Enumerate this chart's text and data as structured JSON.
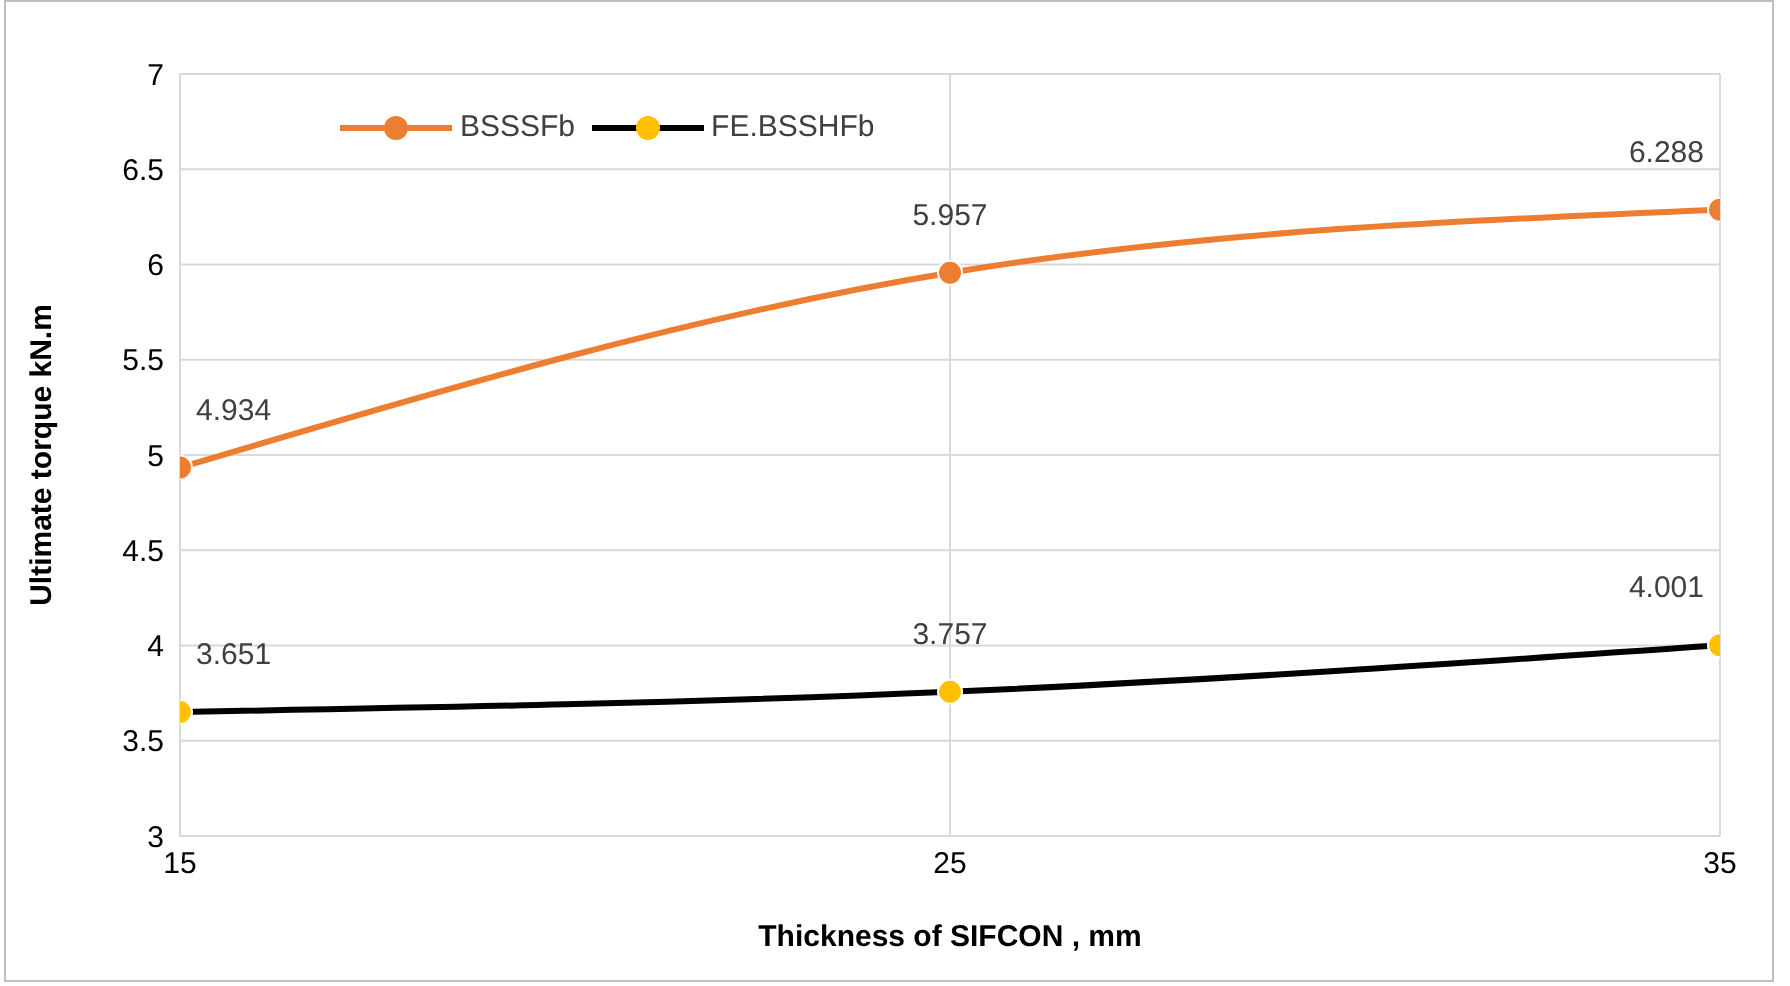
{
  "chart_data": {
    "type": "line",
    "xlabel": "Thickness of SIFCON , mm",
    "ylabel": "Ultimate torque kN.m",
    "x": [
      15,
      25,
      35
    ],
    "xlim": [
      15,
      35
    ],
    "xticks": [
      15,
      25,
      35
    ],
    "ylim": [
      3,
      7
    ],
    "yticks": [
      3,
      3.5,
      4,
      4.5,
      5,
      5.5,
      6,
      6.5,
      7
    ],
    "grid": true,
    "legend": "top left",
    "marker": "circle",
    "data_labels": true,
    "series": [
      {
        "name": "BSSSFb",
        "color": "#ed7d31",
        "values": [
          4.934,
          5.957,
          6.288
        ]
      },
      {
        "name": "FE.BSSHFb",
        "color": "#000000",
        "colors": [
          "#ffc000",
          "#ffc000",
          "#ffc000"
        ],
        "values": [
          3.651,
          3.757,
          4.001
        ]
      }
    ]
  }
}
